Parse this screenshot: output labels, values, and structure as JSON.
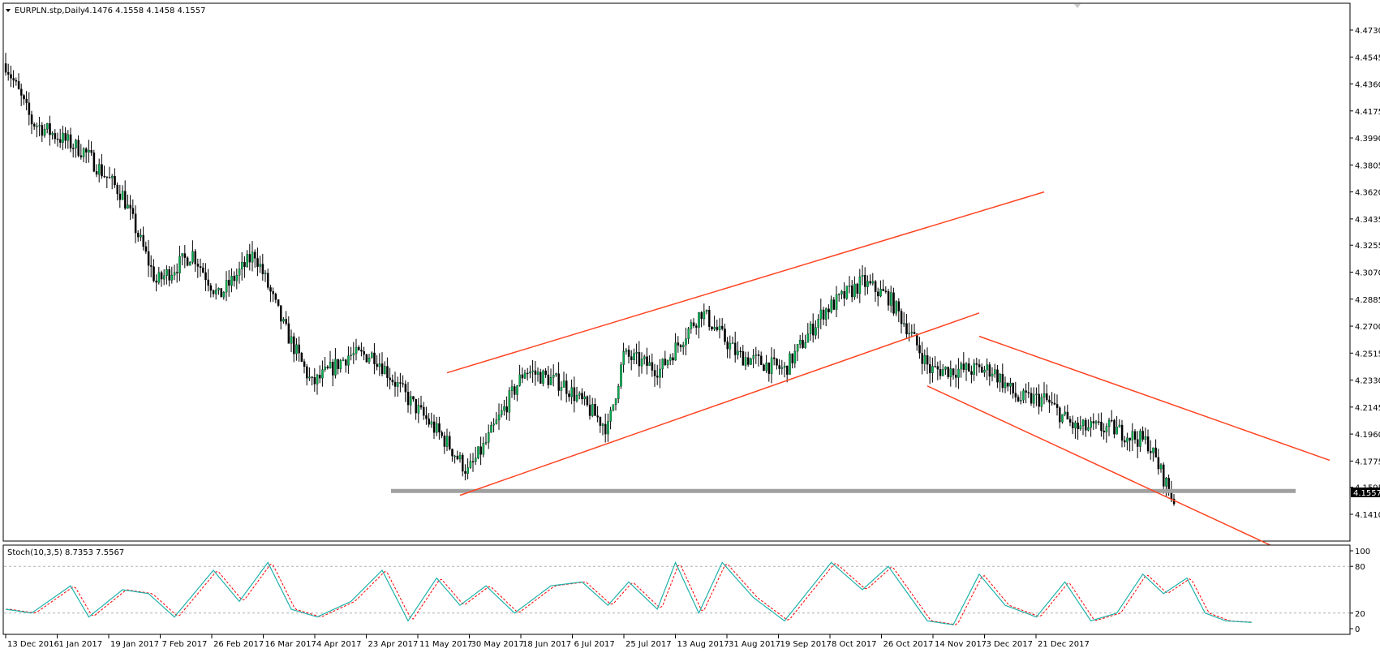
{
  "header": {
    "symbol_label": "EURPLN.stp,Daily",
    "ohlc": "4.1476 4.1558 4.1458 4.1557"
  },
  "price_axis": {
    "ticks": [
      "4.4730",
      "4.4545",
      "4.4360",
      "4.4175",
      "4.3990",
      "4.3805",
      "4.3620",
      "4.3435",
      "4.3255",
      "4.3070",
      "4.2885",
      "4.2700",
      "4.2515",
      "4.2330",
      "4.2145",
      "4.1960",
      "4.1775",
      "4.1595",
      "4.1410"
    ],
    "current_price": "4.1557"
  },
  "indicator": {
    "title": "Stoch(10,3,5) 8.7353 7.5567",
    "levels": [
      "100",
      "80",
      "20",
      "0"
    ]
  },
  "time_axis": {
    "labels": [
      "13 Dec 2016",
      "1 Jan 2017",
      "19 Jan 2017",
      "7 Feb 2017",
      "26 Feb 2017",
      "16 Mar 2017",
      "4 Apr 2017",
      "23 Apr 2017",
      "11 May 2017",
      "30 May 2017",
      "18 Jun 2017",
      "6 Jul 2017",
      "25 Jul 2017",
      "13 Aug 2017",
      "31 Aug 2017",
      "19 Sep 2017",
      "8 Oct 2017",
      "26 Oct 2017",
      "14 Nov 2017",
      "3 Dec 2017",
      "21 Dec 2017"
    ]
  },
  "colors": {
    "bull": "#00b050",
    "bear": "#000000",
    "trendline": "#ff4422",
    "support": "#a0a0a0",
    "stoch_main": "#20b2aa",
    "stoch_signal": "#ff0000"
  },
  "chart_data": {
    "type": "candlestick",
    "price_anchors": [
      [
        0,
        4.45
      ],
      [
        10,
        4.41
      ],
      [
        20,
        4.4
      ],
      [
        30,
        4.39
      ],
      [
        45,
        4.36
      ],
      [
        58,
        4.3
      ],
      [
        72,
        4.32
      ],
      [
        82,
        4.29
      ],
      [
        96,
        4.32
      ],
      [
        107,
        4.27
      ],
      [
        118,
        4.23
      ],
      [
        132,
        4.25
      ],
      [
        142,
        4.25
      ],
      [
        155,
        4.22
      ],
      [
        170,
        4.19
      ],
      [
        178,
        4.17
      ],
      [
        185,
        4.19
      ],
      [
        200,
        4.24
      ],
      [
        215,
        4.23
      ],
      [
        232,
        4.2
      ],
      [
        238,
        4.25
      ],
      [
        252,
        4.24
      ],
      [
        268,
        4.28
      ],
      [
        282,
        4.25
      ],
      [
        300,
        4.24
      ],
      [
        315,
        4.28
      ],
      [
        330,
        4.3
      ],
      [
        340,
        4.29
      ],
      [
        347,
        4.27
      ],
      [
        356,
        4.24
      ],
      [
        368,
        4.24
      ],
      [
        380,
        4.24
      ],
      [
        390,
        4.22
      ],
      [
        400,
        4.22
      ],
      [
        412,
        4.2
      ],
      [
        426,
        4.2
      ],
      [
        440,
        4.19
      ],
      [
        450,
        4.15
      ]
    ],
    "stoch_anchors": [
      [
        0,
        25
      ],
      [
        10,
        20
      ],
      [
        25,
        55
      ],
      [
        32,
        15
      ],
      [
        45,
        50
      ],
      [
        55,
        45
      ],
      [
        65,
        15
      ],
      [
        80,
        75
      ],
      [
        90,
        35
      ],
      [
        101,
        85
      ],
      [
        110,
        25
      ],
      [
        120,
        15
      ],
      [
        133,
        35
      ],
      [
        145,
        75
      ],
      [
        155,
        10
      ],
      [
        166,
        65
      ],
      [
        175,
        30
      ],
      [
        185,
        55
      ],
      [
        196,
        20
      ],
      [
        210,
        55
      ],
      [
        222,
        60
      ],
      [
        232,
        30
      ],
      [
        240,
        60
      ],
      [
        251,
        25
      ],
      [
        258,
        85
      ],
      [
        267,
        20
      ],
      [
        276,
        85
      ],
      [
        288,
        40
      ],
      [
        300,
        10
      ],
      [
        318,
        85
      ],
      [
        330,
        50
      ],
      [
        340,
        80
      ],
      [
        355,
        10
      ],
      [
        365,
        5
      ],
      [
        375,
        70
      ],
      [
        385,
        30
      ],
      [
        397,
        15
      ],
      [
        408,
        60
      ],
      [
        418,
        10
      ],
      [
        428,
        20
      ],
      [
        438,
        70
      ],
      [
        446,
        45
      ],
      [
        455,
        65
      ],
      [
        462,
        20
      ],
      [
        470,
        10
      ],
      [
        480,
        8
      ]
    ],
    "trendlines": [
      [
        [
          170,
          4.238
        ],
        [
          400,
          4.362
        ]
      ],
      [
        [
          175,
          4.154
        ],
        [
          375,
          4.279
        ]
      ],
      [
        [
          355,
          4.229
        ],
        [
          493,
          4.115
        ]
      ],
      [
        [
          375,
          4.263
        ],
        [
          510,
          4.178
        ]
      ]
    ],
    "support_level": 4.157
  }
}
